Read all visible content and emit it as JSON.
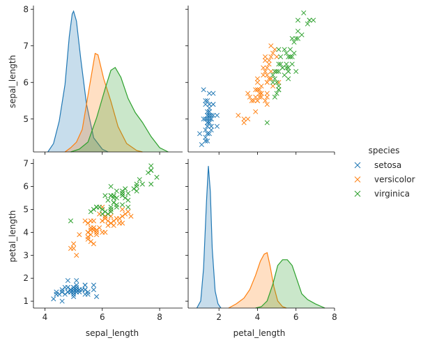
{
  "chart_data": {
    "type": "pairplot",
    "variables": [
      "sepal_length",
      "petal_length"
    ],
    "legend": {
      "title": "species",
      "placement": "right",
      "entries": [
        {
          "name": "setosa",
          "color": "#1f77b4"
        },
        {
          "name": "versicolor",
          "color": "#ff7f0e"
        },
        {
          "name": "virginica",
          "color": "#2ca02c"
        }
      ]
    },
    "axes": {
      "sepal_length": {
        "label": "sepal_length",
        "range": [
          3.6,
          8.8
        ],
        "ticks": [
          4,
          6,
          8
        ],
        "ticks_row": [
          5,
          6,
          7,
          8
        ],
        "range_row": [
          4.1,
          8.1
        ]
      },
      "petal_length": {
        "label": "petal_length",
        "range": [
          0.4,
          8.0
        ],
        "ticks": [
          2,
          4,
          6,
          8
        ],
        "ticks_row": [
          1,
          2,
          3,
          4,
          5,
          6,
          7
        ],
        "range_row": [
          0.7,
          7.2
        ]
      }
    },
    "kde_series": {
      "sepal_length": [
        {
          "name": "setosa",
          "points": [
            [
              4.1,
              0
            ],
            [
              4.3,
              0.06
            ],
            [
              4.5,
              0.22
            ],
            [
              4.7,
              0.48
            ],
            [
              4.85,
              0.82
            ],
            [
              4.95,
              0.98
            ],
            [
              5.0,
              1.0
            ],
            [
              5.1,
              0.93
            ],
            [
              5.25,
              0.66
            ],
            [
              5.45,
              0.34
            ],
            [
              5.7,
              0.1
            ],
            [
              6.0,
              0.02
            ],
            [
              6.2,
              0
            ]
          ]
        },
        {
          "name": "versicolor",
          "points": [
            [
              4.7,
              0
            ],
            [
              4.9,
              0.03
            ],
            [
              5.1,
              0.07
            ],
            [
              5.3,
              0.16
            ],
            [
              5.55,
              0.46
            ],
            [
              5.75,
              0.7
            ],
            [
              5.85,
              0.69
            ],
            [
              6.05,
              0.52
            ],
            [
              6.3,
              0.36
            ],
            [
              6.55,
              0.18
            ],
            [
              6.85,
              0.06
            ],
            [
              7.2,
              0.01
            ],
            [
              7.4,
              0
            ]
          ]
        },
        {
          "name": "virginica",
          "points": [
            [
              4.9,
              0
            ],
            [
              5.2,
              0.02
            ],
            [
              5.5,
              0.07
            ],
            [
              5.8,
              0.24
            ],
            [
              6.1,
              0.45
            ],
            [
              6.3,
              0.58
            ],
            [
              6.45,
              0.6
            ],
            [
              6.65,
              0.53
            ],
            [
              6.9,
              0.38
            ],
            [
              7.15,
              0.28
            ],
            [
              7.4,
              0.21
            ],
            [
              7.7,
              0.11
            ],
            [
              8.0,
              0.03
            ],
            [
              8.3,
              0
            ]
          ]
        }
      ],
      "petal_length": [
        {
          "name": "setosa",
          "points": [
            [
              0.85,
              0
            ],
            [
              1.05,
              0.05
            ],
            [
              1.2,
              0.28
            ],
            [
              1.35,
              0.75
            ],
            [
              1.45,
              1.0
            ],
            [
              1.55,
              0.82
            ],
            [
              1.65,
              0.42
            ],
            [
              1.8,
              0.12
            ],
            [
              1.95,
              0.03
            ],
            [
              2.1,
              0
            ]
          ]
        },
        {
          "name": "versicolor",
          "points": [
            [
              2.5,
              0
            ],
            [
              2.9,
              0.03
            ],
            [
              3.3,
              0.07
            ],
            [
              3.6,
              0.13
            ],
            [
              3.9,
              0.23
            ],
            [
              4.15,
              0.33
            ],
            [
              4.35,
              0.38
            ],
            [
              4.5,
              0.39
            ],
            [
              4.65,
              0.3
            ],
            [
              4.85,
              0.15
            ],
            [
              5.05,
              0.05
            ],
            [
              5.3,
              0.01
            ],
            [
              5.5,
              0
            ]
          ]
        },
        {
          "name": "virginica",
          "points": [
            [
              3.9,
              0
            ],
            [
              4.2,
              0.01
            ],
            [
              4.5,
              0.05
            ],
            [
              4.8,
              0.17
            ],
            [
              5.05,
              0.3
            ],
            [
              5.3,
              0.34
            ],
            [
              5.55,
              0.34
            ],
            [
              5.8,
              0.3
            ],
            [
              6.05,
              0.2
            ],
            [
              6.3,
              0.1
            ],
            [
              6.6,
              0.06
            ],
            [
              7.0,
              0.03
            ],
            [
              7.5,
              0
            ]
          ]
        }
      ]
    },
    "scatter_series": [
      {
        "name": "setosa",
        "points": [
          [
            5.1,
            1.4
          ],
          [
            4.9,
            1.4
          ],
          [
            4.7,
            1.3
          ],
          [
            4.6,
            1.5
          ],
          [
            5.0,
            1.4
          ],
          [
            5.4,
            1.7
          ],
          [
            4.6,
            1.4
          ],
          [
            5.0,
            1.5
          ],
          [
            4.4,
            1.4
          ],
          [
            4.9,
            1.5
          ],
          [
            5.4,
            1.5
          ],
          [
            4.8,
            1.6
          ],
          [
            4.8,
            1.4
          ],
          [
            4.3,
            1.1
          ],
          [
            5.8,
            1.2
          ],
          [
            5.7,
            1.5
          ],
          [
            5.4,
            1.3
          ],
          [
            5.1,
            1.4
          ],
          [
            5.7,
            1.7
          ],
          [
            5.1,
            1.5
          ],
          [
            5.4,
            1.7
          ],
          [
            5.1,
            1.5
          ],
          [
            4.6,
            1.0
          ],
          [
            5.1,
            1.7
          ],
          [
            4.8,
            1.9
          ],
          [
            5.0,
            1.6
          ],
          [
            5.0,
            1.6
          ],
          [
            5.2,
            1.5
          ],
          [
            5.2,
            1.4
          ],
          [
            4.7,
            1.6
          ],
          [
            4.8,
            1.6
          ],
          [
            5.4,
            1.5
          ],
          [
            5.2,
            1.5
          ],
          [
            5.5,
            1.4
          ],
          [
            4.9,
            1.5
          ],
          [
            5.0,
            1.2
          ],
          [
            5.5,
            1.3
          ],
          [
            4.9,
            1.4
          ],
          [
            4.4,
            1.3
          ],
          [
            5.1,
            1.5
          ],
          [
            5.0,
            1.3
          ],
          [
            4.5,
            1.3
          ],
          [
            4.4,
            1.3
          ],
          [
            5.0,
            1.6
          ],
          [
            5.1,
            1.9
          ],
          [
            4.8,
            1.4
          ],
          [
            5.1,
            1.6
          ],
          [
            4.6,
            1.4
          ],
          [
            5.3,
            1.5
          ],
          [
            5.0,
            1.4
          ]
        ]
      },
      {
        "name": "versicolor",
        "points": [
          [
            7.0,
            4.7
          ],
          [
            6.4,
            4.5
          ],
          [
            6.9,
            4.9
          ],
          [
            5.5,
            4.0
          ],
          [
            6.5,
            4.6
          ],
          [
            5.7,
            4.5
          ],
          [
            6.3,
            4.7
          ],
          [
            4.9,
            3.3
          ],
          [
            6.6,
            4.6
          ],
          [
            5.2,
            3.9
          ],
          [
            5.0,
            3.5
          ],
          [
            5.9,
            4.2
          ],
          [
            6.0,
            4.0
          ],
          [
            6.1,
            4.7
          ],
          [
            5.6,
            3.6
          ],
          [
            6.7,
            4.4
          ],
          [
            5.6,
            4.5
          ],
          [
            5.8,
            4.1
          ],
          [
            6.2,
            4.5
          ],
          [
            5.6,
            3.9
          ],
          [
            5.9,
            4.8
          ],
          [
            6.1,
            4.0
          ],
          [
            6.3,
            4.9
          ],
          [
            6.1,
            4.7
          ],
          [
            6.4,
            4.3
          ],
          [
            6.6,
            4.4
          ],
          [
            6.8,
            4.8
          ],
          [
            6.7,
            5.0
          ],
          [
            6.0,
            4.5
          ],
          [
            5.7,
            3.5
          ],
          [
            5.5,
            3.8
          ],
          [
            5.5,
            3.7
          ],
          [
            5.8,
            3.9
          ],
          [
            6.0,
            5.1
          ],
          [
            5.4,
            4.5
          ],
          [
            6.0,
            4.5
          ],
          [
            6.7,
            4.7
          ],
          [
            6.3,
            4.4
          ],
          [
            5.6,
            4.1
          ],
          [
            5.5,
            4.0
          ],
          [
            5.5,
            4.4
          ],
          [
            6.1,
            4.6
          ],
          [
            5.8,
            4.0
          ],
          [
            5.0,
            3.3
          ],
          [
            5.6,
            4.2
          ],
          [
            5.7,
            4.2
          ],
          [
            5.7,
            4.2
          ],
          [
            6.2,
            4.3
          ],
          [
            5.1,
            3.0
          ],
          [
            5.7,
            4.1
          ]
        ]
      },
      {
        "name": "virginica",
        "points": [
          [
            6.3,
            6.0
          ],
          [
            5.8,
            5.1
          ],
          [
            7.1,
            5.9
          ],
          [
            6.3,
            5.6
          ],
          [
            6.5,
            5.8
          ],
          [
            7.6,
            6.6
          ],
          [
            4.9,
            4.5
          ],
          [
            7.3,
            6.3
          ],
          [
            6.7,
            5.8
          ],
          [
            7.2,
            6.1
          ],
          [
            6.5,
            5.1
          ],
          [
            6.4,
            5.3
          ],
          [
            6.8,
            5.5
          ],
          [
            5.7,
            5.0
          ],
          [
            5.8,
            5.1
          ],
          [
            6.4,
            5.3
          ],
          [
            6.5,
            5.5
          ],
          [
            7.7,
            6.7
          ],
          [
            7.7,
            6.9
          ],
          [
            6.0,
            5.0
          ],
          [
            6.9,
            5.7
          ],
          [
            5.6,
            4.9
          ],
          [
            7.7,
            6.7
          ],
          [
            6.3,
            4.9
          ],
          [
            6.7,
            5.7
          ],
          [
            7.2,
            6.0
          ],
          [
            6.2,
            4.8
          ],
          [
            6.1,
            4.9
          ],
          [
            6.4,
            5.6
          ],
          [
            7.2,
            5.8
          ],
          [
            7.4,
            6.1
          ],
          [
            7.9,
            6.4
          ],
          [
            6.4,
            5.6
          ],
          [
            6.3,
            5.1
          ],
          [
            6.1,
            5.6
          ],
          [
            7.7,
            6.1
          ],
          [
            6.3,
            5.6
          ],
          [
            6.4,
            5.5
          ],
          [
            6.0,
            4.8
          ],
          [
            6.9,
            5.4
          ],
          [
            6.7,
            5.6
          ],
          [
            6.9,
            5.1
          ],
          [
            5.8,
            5.1
          ],
          [
            6.8,
            5.9
          ],
          [
            6.7,
            5.7
          ],
          [
            6.7,
            5.2
          ],
          [
            6.3,
            5.0
          ],
          [
            6.5,
            5.2
          ],
          [
            6.2,
            5.4
          ],
          [
            5.9,
            5.1
          ]
        ]
      }
    ]
  }
}
